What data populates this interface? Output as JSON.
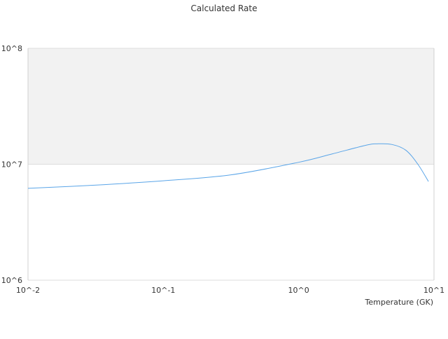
{
  "chart_data": {
    "type": "line",
    "title": "Calculated Rate",
    "xlabel": "Temperature (GK)",
    "ylabel": "",
    "xscale": "log",
    "yscale": "log",
    "xlim": [
      0.01,
      10
    ],
    "ylim": [
      1000000,
      100000000
    ],
    "x_ticks": [
      {
        "value": 0.01,
        "label": "10^-2"
      },
      {
        "value": 0.1,
        "label": "10^-1"
      },
      {
        "value": 1,
        "label": "10^0"
      },
      {
        "value": 10,
        "label": "10^1"
      }
    ],
    "y_ticks": [
      {
        "value": 1000000,
        "label": "10^6"
      },
      {
        "value": 10000000,
        "label": "10^7"
      },
      {
        "value": 100000000,
        "label": "10^8"
      }
    ],
    "grid": true,
    "shaded_band": {
      "from": 10000000,
      "to": 100000000,
      "color": "#f2f2f2"
    },
    "series": [
      {
        "color": "#5aa5e8",
        "x": [
          0.01,
          0.031,
          0.1,
          0.316,
          1.0,
          1.78,
          3.16,
          3.8,
          4.9,
          6.2,
          7.6,
          9.1
        ],
        "y": [
          6200000,
          6600000,
          7200000,
          8100000,
          10400000,
          12300000,
          14600000,
          15000000,
          14800000,
          13200000,
          10000000,
          7100000
        ]
      }
    ]
  }
}
